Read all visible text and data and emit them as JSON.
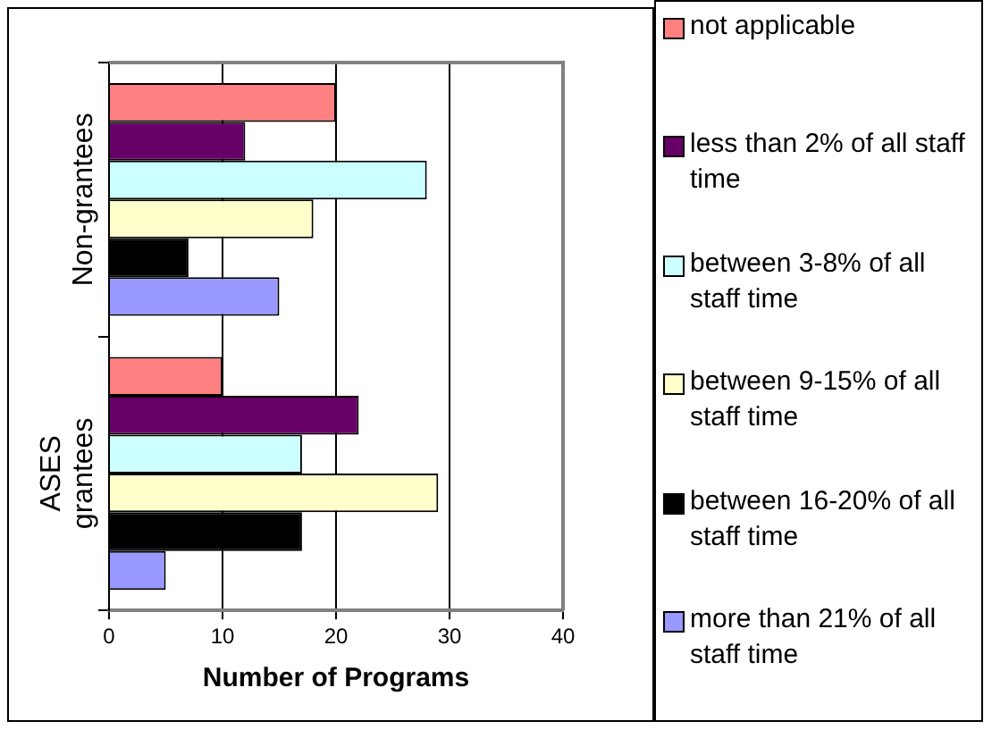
{
  "chart_data": {
    "type": "bar",
    "orientation": "horizontal",
    "xlabel": "Number of Programs",
    "categories": [
      "Non-grantees",
      "ASES grantees"
    ],
    "series": [
      {
        "name": "not applicable",
        "color": "#ff8080",
        "values": [
          20,
          10
        ]
      },
      {
        "name": "less than 2% of all staff time",
        "color": "#660066",
        "values": [
          12,
          22
        ]
      },
      {
        "name": "between 3-8% of all staff time",
        "color": "#ccffff",
        "values": [
          28,
          17
        ]
      },
      {
        "name": "between 9-15% of all staff time",
        "color": "#ffffcc",
        "values": [
          18,
          29
        ]
      },
      {
        "name": "between 16-20% of all staff time",
        "color": "#000000",
        "values": [
          7,
          17
        ]
      },
      {
        "name": "more than 21% of all staff time",
        "color": "#9999ff",
        "values": [
          15,
          5
        ]
      }
    ],
    "xlim": [
      0,
      40
    ],
    "xticks": [
      0,
      10,
      20,
      30,
      40
    ],
    "grid": "x",
    "legend": "right"
  }
}
